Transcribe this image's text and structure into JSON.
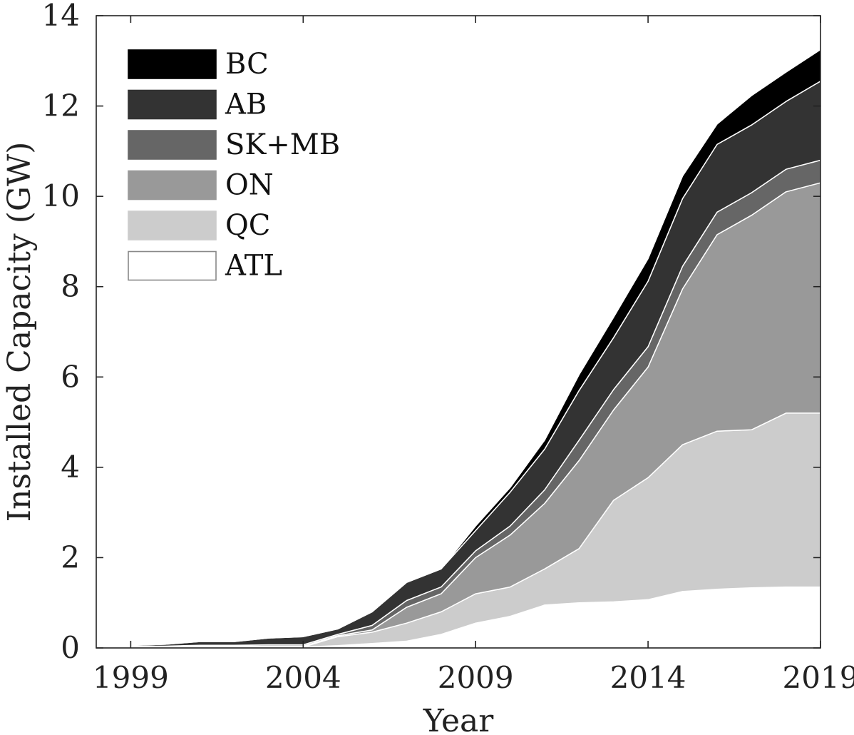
{
  "chart_data": {
    "type": "area",
    "stacked": true,
    "xlabel": "Year",
    "ylabel": "Installed Capacity (GW)",
    "xlim": [
      1998,
      2019
    ],
    "ylim": [
      0,
      14
    ],
    "xticks": [
      1999,
      2004,
      2009,
      2014,
      2019
    ],
    "yticks": [
      0,
      2,
      4,
      6,
      8,
      10,
      12,
      14
    ],
    "legend_position": "top-left",
    "x": [
      1998,
      1999,
      2000,
      2001,
      2002,
      2003,
      2004,
      2005,
      2006,
      2007,
      2008,
      2009,
      2010,
      2011,
      2012,
      2013,
      2014,
      2015,
      2016,
      2017,
      2018,
      2019
    ],
    "series": [
      {
        "name": "ATL",
        "color": "#ffffff",
        "values": [
          0,
          0.02,
          0.02,
          0.02,
          0.02,
          0.02,
          0.02,
          0.05,
          0.1,
          0.15,
          0.3,
          0.55,
          0.7,
          0.95,
          1.0,
          1.02,
          1.07,
          1.25,
          1.3,
          1.33,
          1.35,
          1.35
        ]
      },
      {
        "name": "QC",
        "color": "#cccccc",
        "values": [
          0,
          0.0,
          0.0,
          0.0,
          0.0,
          0.0,
          0.0,
          0.2,
          0.25,
          0.4,
          0.5,
          0.65,
          0.65,
          0.8,
          1.2,
          2.25,
          2.7,
          3.25,
          3.5,
          3.5,
          3.85,
          3.85
        ]
      },
      {
        "name": "ON",
        "color": "#999999",
        "values": [
          0,
          0.01,
          0.01,
          0.02,
          0.02,
          0.02,
          0.02,
          0.02,
          0.05,
          0.35,
          0.4,
          0.8,
          1.15,
          1.45,
          1.95,
          2.0,
          2.45,
          3.45,
          4.35,
          4.75,
          4.9,
          5.1
        ]
      },
      {
        "name": "SK+MB",
        "color": "#666666",
        "values": [
          0,
          0.01,
          0.01,
          0.02,
          0.02,
          0.03,
          0.03,
          0.03,
          0.1,
          0.15,
          0.15,
          0.15,
          0.2,
          0.3,
          0.45,
          0.45,
          0.45,
          0.5,
          0.5,
          0.5,
          0.5,
          0.5
        ]
      },
      {
        "name": "AB",
        "color": "#333333",
        "values": [
          0,
          0.02,
          0.04,
          0.08,
          0.08,
          0.15,
          0.18,
          0.12,
          0.3,
          0.4,
          0.4,
          0.45,
          0.75,
          0.9,
          1.1,
          1.15,
          1.45,
          1.5,
          1.5,
          1.5,
          1.5,
          1.75
        ]
      },
      {
        "name": "BC",
        "color": "#000000",
        "values": [
          0,
          0.0,
          0.0,
          0.0,
          0.0,
          0.0,
          0.0,
          0.0,
          0.0,
          0.0,
          0.0,
          0.1,
          0.1,
          0.2,
          0.35,
          0.45,
          0.5,
          0.5,
          0.45,
          0.65,
          0.65,
          0.7
        ]
      }
    ]
  }
}
